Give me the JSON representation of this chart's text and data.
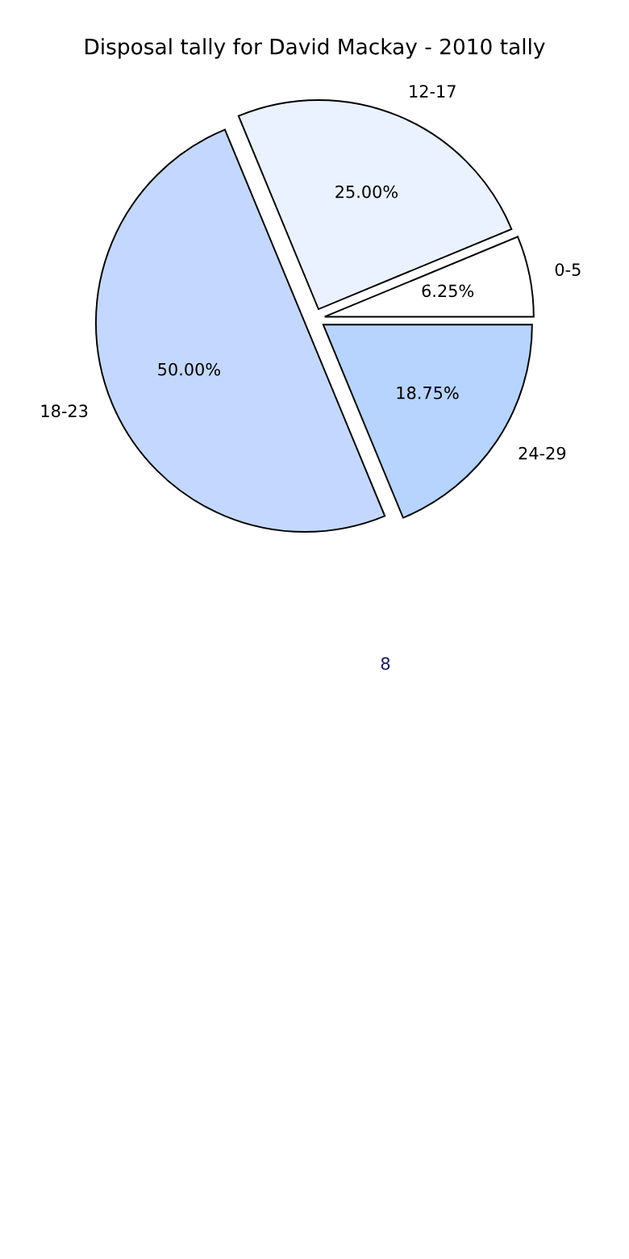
{
  "chart_data": {
    "type": "pie",
    "title": "Disposal tally for David Mackay - 2010 tally",
    "categories": [
      "0-5",
      "12-17",
      "18-23",
      "24-29"
    ],
    "values": [
      6.25,
      25.0,
      50.0,
      18.75
    ],
    "value_labels": [
      "6.25%",
      "25.00%",
      "50.00%",
      "18.75%"
    ],
    "colors": [
      "#ffffff",
      "#eaf2ff",
      "#c4d8ff",
      "#b6d4ff"
    ],
    "annotations": [
      "8"
    ]
  }
}
